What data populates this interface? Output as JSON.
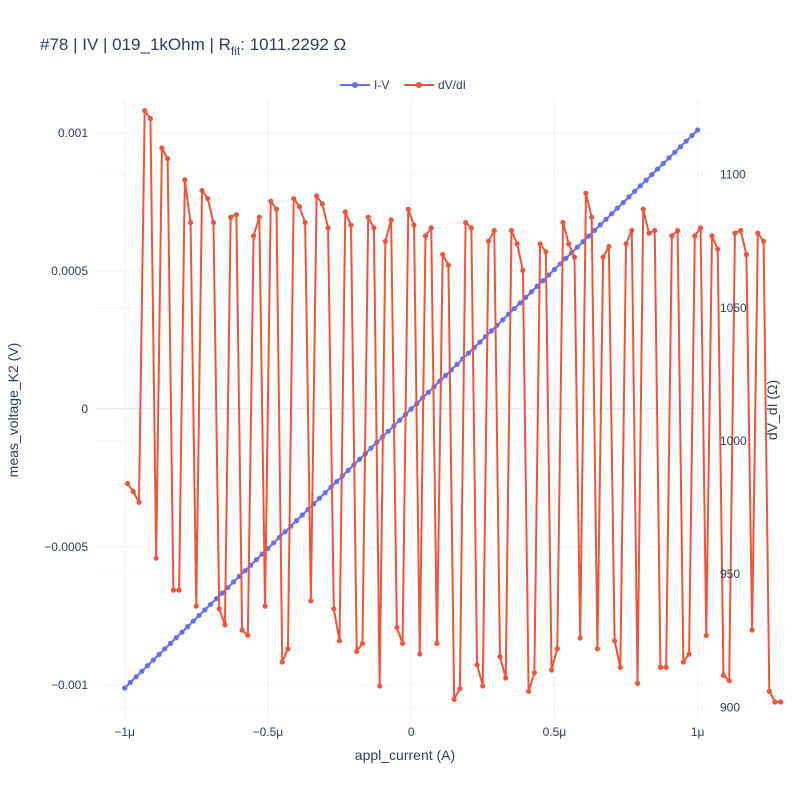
{
  "chart_data": {
    "type": "line",
    "title": {
      "prefix": "#78 | IV | 019_1kOhm | R",
      "sub": "fit",
      "suffix": ": 1011.2292 Ω"
    },
    "xlabel": "appl_current (A)",
    "ylabel_left": "meas_voltage_K2 (V)",
    "ylabel_right": "dV_dI (Ω)",
    "x_ticks": [
      {
        "value": -1e-06,
        "label": "−1μ"
      },
      {
        "value": -5e-07,
        "label": "−0.5μ"
      },
      {
        "value": 0,
        "label": "0"
      },
      {
        "value": 5e-07,
        "label": "0.5μ"
      },
      {
        "value": 1e-06,
        "label": "1μ"
      }
    ],
    "y_left_ticks": [
      {
        "value": 0.001,
        "label": "0.001"
      },
      {
        "value": 0.0005,
        "label": "0.0005"
      },
      {
        "value": 0,
        "label": "0"
      },
      {
        "value": -0.0005,
        "label": "−0.0005"
      },
      {
        "value": -0.001,
        "label": "−0.001"
      }
    ],
    "y_right_ticks": [
      {
        "value": 1100,
        "label": "1100"
      },
      {
        "value": 1050,
        "label": "1050"
      },
      {
        "value": 1000,
        "label": "1000"
      },
      {
        "value": 950,
        "label": "950"
      },
      {
        "value": 900,
        "label": "900"
      }
    ],
    "x_range": [
      -1.1e-06,
      1.05e-06
    ],
    "y_left_range": [
      -0.00112,
      0.00112
    ],
    "y_right_range": [
      896,
      1128
    ],
    "legend_position": "top-center",
    "grid": true,
    "series": [
      {
        "name": "I-V",
        "axis": "left",
        "color": "#636efa",
        "x_start": -1e-06,
        "x_step": 2e-08,
        "resistance_ohm": 1011.2292,
        "count": 101
      },
      {
        "name": "dV/dI",
        "axis": "right",
        "color": "#ef553b",
        "x_start": -9.9e-07,
        "x_step": 2e-08,
        "values": [
          984,
          981,
          977,
          1124,
          1121,
          956,
          1110,
          1106,
          944,
          944,
          1098,
          1082,
          938,
          1094,
          1091,
          1082,
          937,
          931,
          1084,
          1085,
          929,
          927,
          1077,
          1084,
          938,
          1090,
          1087,
          917,
          922,
          1091,
          1088,
          1082,
          940,
          1092,
          1089,
          1080,
          937,
          925,
          1086,
          1081,
          921,
          924,
          1084,
          1080,
          908,
          1075,
          1083,
          930,
          924,
          1087,
          1081,
          920,
          1077,
          1080,
          924,
          1070,
          1066,
          903,
          907,
          1082,
          1080,
          916,
          908,
          1075,
          1079,
          919,
          911,
          1079,
          1074,
          1064,
          906,
          913,
          1074,
          1071,
          914,
          922,
          1082,
          1074,
          1069,
          926,
          1093,
          1084,
          922,
          1069,
          1073,
          925,
          915,
          1074,
          1079,
          909,
          1087,
          1078,
          1079,
          915,
          915,
          1077,
          1079,
          917,
          920,
          1077,
          1080,
          927,
          1077,
          1072,
          912,
          910,
          1078,
          1079,
          1070,
          929,
          1078,
          1075,
          906,
          902,
          902
        ]
      }
    ]
  }
}
